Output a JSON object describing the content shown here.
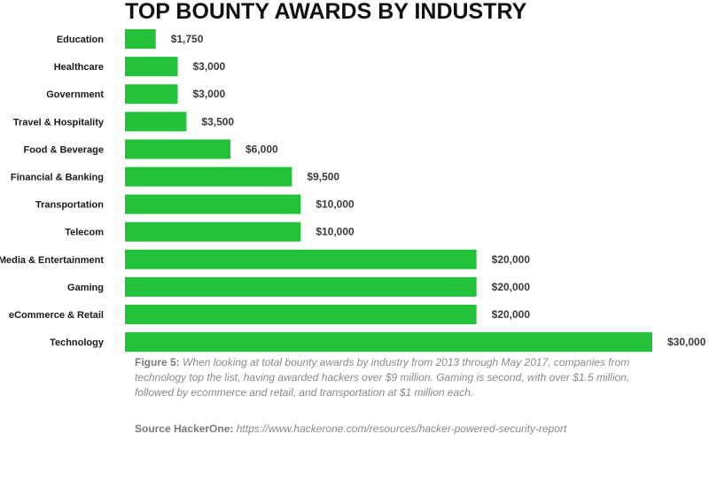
{
  "chart_data": {
    "type": "bar",
    "orientation": "horizontal",
    "title": "TOP BOUNTY AWARDS BY INDUSTRY",
    "categories": [
      "Education",
      "Healthcare",
      "Government",
      "Travel & Hospitality",
      "Food & Beverage",
      "Financial & Banking",
      "Transportation",
      "Telecom",
      "Media & Entertainment",
      "Gaming",
      "eCommerce & Retail",
      "Technology"
    ],
    "values": [
      1750,
      3000,
      3000,
      3500,
      6000,
      9500,
      10000,
      10000,
      20000,
      20000,
      20000,
      30000
    ],
    "value_labels": [
      "$1,750",
      "$3,000",
      "$3,000",
      "$3,500",
      "$6,000",
      "$9,500",
      "$10,000",
      "$10,000",
      "$20,000",
      "$20,000",
      "$20,000",
      "$30,000"
    ],
    "xlim": [
      0,
      30000
    ],
    "xlabel": "",
    "ylabel": "",
    "grid": false,
    "bar_color": "#22c33b"
  },
  "caption": {
    "lead": "Figure 5:",
    "text": "When looking at total bounty awards by industry from 2013 through May 2017, companies from technology top the list, having awarded hackers over $9 million. Gaming is second, with over $1.5 million, followed by ecommerce and retail, and transportation at $1 million each."
  },
  "source": {
    "lead": "Source HackerOne:",
    "url": "https://www.hackerone.com/resources/hacker-powered-security-report"
  }
}
